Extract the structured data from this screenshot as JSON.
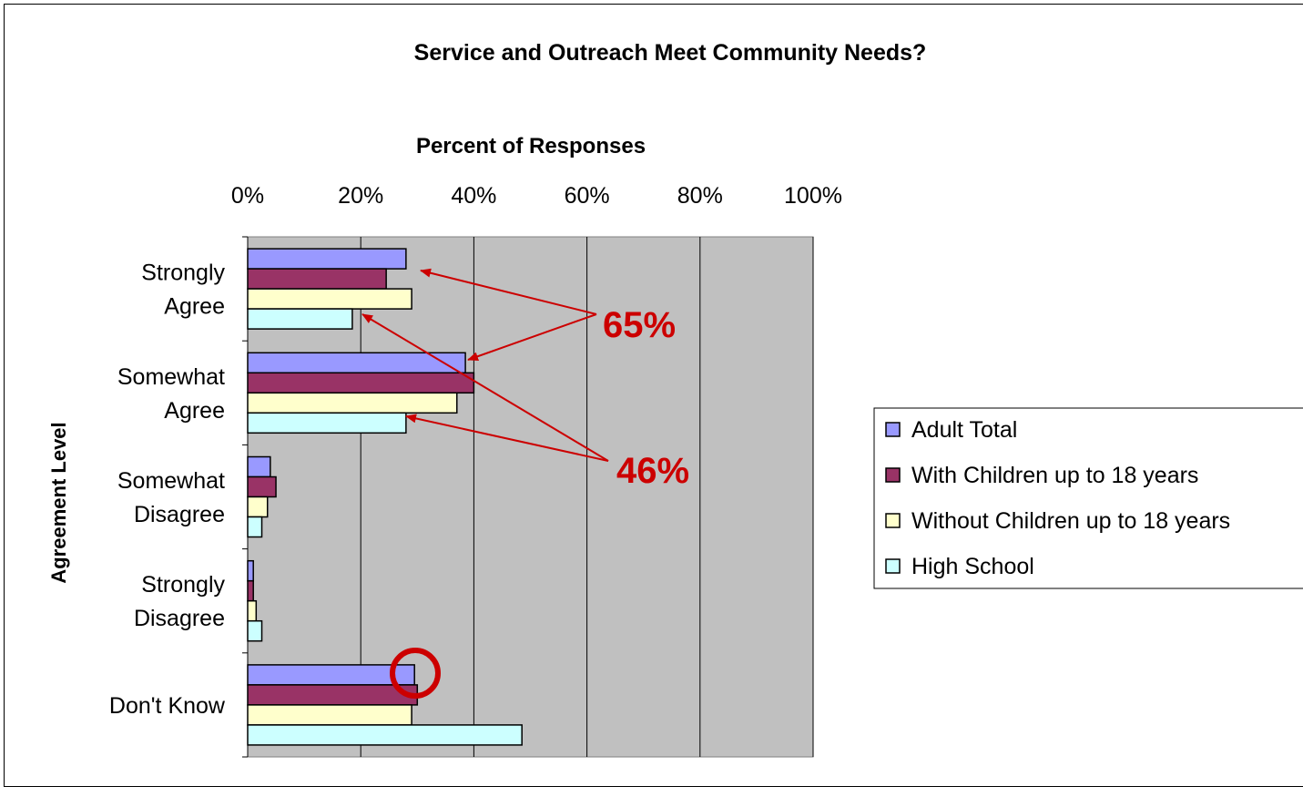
{
  "chart_data": {
    "type": "bar",
    "orientation": "horizontal",
    "title": "Service and Outreach Meet Community Needs?",
    "xlabel": "Percent of Responses",
    "ylabel": "Agreement Level",
    "xlim": [
      0,
      100
    ],
    "x_ticks": [
      "0%",
      "20%",
      "40%",
      "60%",
      "80%",
      "100%"
    ],
    "categories": [
      [
        "Strongly",
        "Agree"
      ],
      [
        "Somewhat",
        "Agree"
      ],
      [
        "Somewhat",
        "Disagree"
      ],
      [
        "Strongly",
        "Disagree"
      ],
      [
        "Don't Know"
      ]
    ],
    "series": [
      {
        "name": "Adult Total",
        "color": "#9999ff",
        "values": [
          28,
          38.5,
          4,
          1,
          29.5
        ]
      },
      {
        "name": "With Children up to 18 years",
        "color": "#993366",
        "values": [
          24.5,
          40,
          5,
          1,
          30
        ]
      },
      {
        "name": "Without Children up to 18 years",
        "color": "#ffffcc",
        "values": [
          29,
          37,
          3.5,
          1.5,
          29
        ]
      },
      {
        "name": "High School",
        "color": "#ccffff",
        "values": [
          18.5,
          28,
          2.5,
          2.5,
          48.5
        ]
      }
    ],
    "annotations": [
      {
        "text": "65%",
        "color": "#cc0000"
      },
      {
        "text": "46%",
        "color": "#cc0000"
      }
    ],
    "highlight": {
      "shape": "circle",
      "category": "Don't Know",
      "series": "Adult Total",
      "color": "#cc0000"
    },
    "plot_background": "#c0c0c0",
    "grid": true,
    "legend_position": "right"
  }
}
